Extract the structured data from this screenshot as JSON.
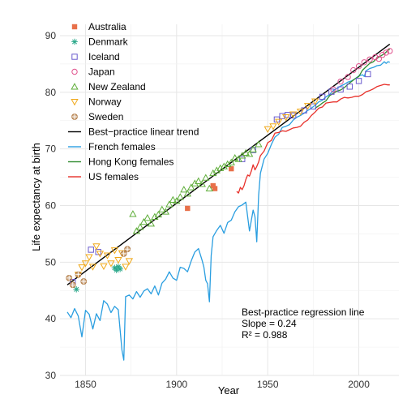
{
  "chart_data": {
    "type": "scatter",
    "xlabel": "Year",
    "ylabel": "Life expectancy at birth",
    "xlim": [
      1836,
      2022
    ],
    "ylim": [
      30,
      92
    ],
    "x_ticks": [
      1850,
      1900,
      1950,
      2000
    ],
    "y_ticks": [
      30,
      40,
      50,
      60,
      70,
      80,
      90
    ],
    "grid": true,
    "legend_position": "top-left",
    "legend": [
      {
        "name": "Australia",
        "color": "#e8704a",
        "marker": "filled-square"
      },
      {
        "name": "Denmark",
        "color": "#2aa88a",
        "marker": "asterisk"
      },
      {
        "name": "Iceland",
        "color": "#6a5acd",
        "marker": "open-square"
      },
      {
        "name": "Japan",
        "color": "#e0508c",
        "marker": "open-circle"
      },
      {
        "name": "New Zealand",
        "color": "#5fae3a",
        "marker": "open-triangle-up"
      },
      {
        "name": "Norway",
        "color": "#f0a818",
        "marker": "open-triangle-down"
      },
      {
        "name": "Sweden",
        "color": "#b07840",
        "marker": "circle-plus"
      },
      {
        "name": "Best−practice linear trend",
        "color": "#000000",
        "marker": "line"
      },
      {
        "name": "French females",
        "color": "#2a9ee0",
        "marker": "line"
      },
      {
        "name": "Hong Kong females",
        "color": "#2e8b2e",
        "marker": "line"
      },
      {
        "name": "US females",
        "color": "#e8302a",
        "marker": "line"
      }
    ],
    "annotation": {
      "title": "Best-practice regression line",
      "slope_text": "Slope = 0.24",
      "r2_text": "R² = 0.988"
    },
    "trend": {
      "x": [
        1840,
        2017
      ],
      "y": [
        46.0,
        88.5
      ]
    },
    "series": [
      {
        "name": "Australia",
        "points": [
          [
            1906,
            59.5
          ],
          [
            1920,
            63.5
          ],
          [
            1921,
            63.0
          ],
          [
            1930,
            66.5
          ]
        ]
      },
      {
        "name": "Denmark",
        "points": [
          [
            1845,
            45.2
          ],
          [
            1866,
            49.0
          ],
          [
            1867,
            48.6
          ],
          [
            1868,
            49.2
          ],
          [
            1869,
            48.8
          ]
        ]
      },
      {
        "name": "Iceland",
        "points": [
          [
            1843,
            46.5
          ],
          [
            1853,
            52.2
          ],
          [
            1857,
            51.8
          ],
          [
            1936,
            68.2
          ],
          [
            1942,
            69.8
          ],
          [
            1955,
            75.2
          ],
          [
            1958,
            75.8
          ],
          [
            1961,
            76.0
          ],
          [
            1964,
            75.9
          ],
          [
            1970,
            76.8
          ],
          [
            1975,
            77.5
          ],
          [
            1980,
            79.2
          ],
          [
            1985,
            80.1
          ],
          [
            1990,
            80.5
          ],
          [
            1995,
            81.0
          ],
          [
            2000,
            82.0
          ],
          [
            2005,
            83.2
          ]
        ]
      },
      {
        "name": "Japan",
        "points": [
          [
            1986,
            80.5
          ],
          [
            1990,
            81.9
          ],
          [
            1994,
            82.7
          ],
          [
            1997,
            83.9
          ],
          [
            2000,
            84.6
          ],
          [
            2003,
            85.3
          ],
          [
            2006,
            85.8
          ],
          [
            2009,
            86.2
          ],
          [
            2011,
            85.9
          ],
          [
            2013,
            86.6
          ],
          [
            2015,
            87.0
          ],
          [
            2017,
            87.3
          ]
        ]
      },
      {
        "name": "New Zealand",
        "points": [
          [
            1876,
            58.5
          ],
          [
            1878,
            55.5
          ],
          [
            1880,
            56.2
          ],
          [
            1882,
            57.1
          ],
          [
            1884,
            57.8
          ],
          [
            1886,
            56.8
          ],
          [
            1888,
            58.0
          ],
          [
            1890,
            58.4
          ],
          [
            1892,
            59.3
          ],
          [
            1894,
            58.9
          ],
          [
            1896,
            60.2
          ],
          [
            1898,
            61.0
          ],
          [
            1900,
            60.8
          ],
          [
            1902,
            61.5
          ],
          [
            1904,
            62.8
          ],
          [
            1906,
            62.1
          ],
          [
            1908,
            63.2
          ],
          [
            1910,
            63.9
          ],
          [
            1912,
            64.3
          ],
          [
            1914,
            63.8
          ],
          [
            1916,
            64.9
          ],
          [
            1918,
            63.0
          ],
          [
            1920,
            65.7
          ],
          [
            1922,
            66.2
          ],
          [
            1924,
            66.6
          ],
          [
            1926,
            66.9
          ],
          [
            1928,
            67.3
          ],
          [
            1930,
            67.6
          ],
          [
            1932,
            68.4
          ],
          [
            1934,
            68.2
          ],
          [
            1936,
            68.8
          ],
          [
            1938,
            69.3
          ],
          [
            1940,
            69.1
          ],
          [
            1942,
            69.9
          ],
          [
            1945,
            70.8
          ]
        ]
      },
      {
        "name": "Norway",
        "points": [
          [
            1846,
            47.8
          ],
          [
            1848,
            49.1
          ],
          [
            1850,
            49.8
          ],
          [
            1852,
            50.9
          ],
          [
            1854,
            49.2
          ],
          [
            1856,
            52.8
          ],
          [
            1858,
            51.5
          ],
          [
            1860,
            49.3
          ],
          [
            1862,
            51.2
          ],
          [
            1864,
            49.8
          ],
          [
            1866,
            52.1
          ],
          [
            1868,
            50.4
          ],
          [
            1870,
            51.6
          ],
          [
            1872,
            49.2
          ],
          [
            1874,
            50.2
          ],
          [
            1950,
            73.5
          ],
          [
            1953,
            74.0
          ],
          [
            1956,
            74.8
          ],
          [
            1960,
            75.6
          ],
          [
            1964,
            76.1
          ],
          [
            1968,
            76.6
          ],
          [
            1972,
            77.6
          ],
          [
            1976,
            78.4
          ]
        ]
      },
      {
        "name": "Sweden",
        "points": [
          [
            1841,
            47.2
          ],
          [
            1843,
            46.0
          ],
          [
            1846,
            47.8
          ],
          [
            1849,
            46.6
          ],
          [
            1871,
            51.5
          ],
          [
            1873,
            52.3
          ]
        ]
      },
      {
        "name": "French females",
        "points": [
          [
            1840,
            41.2
          ],
          [
            1842,
            40.2
          ],
          [
            1844,
            41.8
          ],
          [
            1846,
            40.5
          ],
          [
            1848,
            36.8
          ],
          [
            1850,
            41.5
          ],
          [
            1852,
            40.8
          ],
          [
            1854,
            38.2
          ],
          [
            1856,
            40.9
          ],
          [
            1858,
            39.7
          ],
          [
            1860,
            43.2
          ],
          [
            1862,
            42.6
          ],
          [
            1864,
            41.1
          ],
          [
            1866,
            42.2
          ],
          [
            1868,
            41.6
          ],
          [
            1870,
            34.5
          ],
          [
            1871,
            32.7
          ],
          [
            1872,
            43.9
          ],
          [
            1874,
            44.2
          ],
          [
            1876,
            43.5
          ],
          [
            1878,
            44.8
          ],
          [
            1880,
            43.8
          ],
          [
            1882,
            44.9
          ],
          [
            1884,
            45.3
          ],
          [
            1886,
            44.4
          ],
          [
            1888,
            45.8
          ],
          [
            1890,
            44.2
          ],
          [
            1892,
            46.3
          ],
          [
            1894,
            47.0
          ],
          [
            1896,
            48.3
          ],
          [
            1898,
            47.2
          ],
          [
            1900,
            46.8
          ],
          [
            1902,
            49.1
          ],
          [
            1904,
            48.9
          ],
          [
            1906,
            48.3
          ],
          [
            1908,
            50.2
          ],
          [
            1910,
            51.8
          ],
          [
            1912,
            52.4
          ],
          [
            1914,
            50.3
          ],
          [
            1915,
            49.1
          ],
          [
            1916,
            46.8
          ],
          [
            1917,
            46.2
          ],
          [
            1918,
            43.0
          ],
          [
            1919,
            51.2
          ],
          [
            1920,
            54.5
          ],
          [
            1922,
            55.6
          ],
          [
            1924,
            56.5
          ],
          [
            1926,
            55.1
          ],
          [
            1928,
            57.0
          ],
          [
            1930,
            57.4
          ],
          [
            1932,
            58.9
          ],
          [
            1934,
            59.8
          ],
          [
            1936,
            60.1
          ],
          [
            1938,
            60.6
          ],
          [
            1940,
            55.5
          ],
          [
            1942,
            59.2
          ],
          [
            1943,
            58.0
          ],
          [
            1944,
            53.6
          ],
          [
            1945,
            61.8
          ],
          [
            1946,
            65.7
          ],
          [
            1948,
            68.2
          ],
          [
            1950,
            69.2
          ],
          [
            1952,
            70.8
          ],
          [
            1954,
            72.1
          ],
          [
            1956,
            72.6
          ],
          [
            1958,
            73.8
          ],
          [
            1960,
            74.0
          ],
          [
            1962,
            74.3
          ],
          [
            1964,
            75.1
          ],
          [
            1966,
            75.6
          ],
          [
            1968,
            75.9
          ],
          [
            1970,
            76.3
          ],
          [
            1972,
            76.8
          ],
          [
            1974,
            77.2
          ],
          [
            1976,
            77.7
          ],
          [
            1978,
            78.3
          ],
          [
            1980,
            78.6
          ],
          [
            1982,
            79.2
          ],
          [
            1984,
            79.6
          ],
          [
            1986,
            80.3
          ],
          [
            1988,
            80.7
          ],
          [
            1990,
            81.1
          ],
          [
            1992,
            81.4
          ],
          [
            1994,
            81.8
          ],
          [
            1996,
            82.0
          ],
          [
            1998,
            82.4
          ],
          [
            2000,
            82.9
          ],
          [
            2002,
            83.1
          ],
          [
            2003,
            82.8
          ],
          [
            2004,
            83.8
          ],
          [
            2006,
            84.2
          ],
          [
            2008,
            84.4
          ],
          [
            2010,
            84.7
          ],
          [
            2012,
            84.8
          ],
          [
            2014,
            85.4
          ],
          [
            2015,
            85.1
          ],
          [
            2016,
            85.4
          ],
          [
            2017,
            85.3
          ]
        ]
      },
      {
        "name": "Hong Kong females",
        "points": [
          [
            1976,
            77.2
          ],
          [
            1978,
            77.6
          ],
          [
            1980,
            78.1
          ],
          [
            1982,
            78.5
          ],
          [
            1984,
            79.4
          ],
          [
            1986,
            79.8
          ],
          [
            1988,
            80.2
          ],
          [
            1990,
            80.4
          ],
          [
            1992,
            80.8
          ],
          [
            1994,
            81.4
          ],
          [
            1996,
            81.9
          ],
          [
            1998,
            82.4
          ],
          [
            2000,
            82.8
          ],
          [
            2002,
            83.9
          ],
          [
            2004,
            84.5
          ],
          [
            2006,
            85.1
          ],
          [
            2008,
            85.4
          ],
          [
            2010,
            86.0
          ],
          [
            2012,
            86.4
          ],
          [
            2014,
            86.8
          ],
          [
            2016,
            87.4
          ],
          [
            2017,
            87.6
          ]
        ]
      },
      {
        "name": "US females",
        "points": [
          [
            1933,
            62.5
          ],
          [
            1934,
            62.2
          ],
          [
            1935,
            63.2
          ],
          [
            1936,
            62.8
          ],
          [
            1937,
            63.5
          ],
          [
            1938,
            64.6
          ],
          [
            1939,
            65.4
          ],
          [
            1940,
            65.2
          ],
          [
            1941,
            66.1
          ],
          [
            1942,
            67.2
          ],
          [
            1943,
            66.3
          ],
          [
            1944,
            66.9
          ],
          [
            1945,
            67.7
          ],
          [
            1946,
            68.8
          ],
          [
            1948,
            69.6
          ],
          [
            1950,
            71.1
          ],
          [
            1952,
            71.5
          ],
          [
            1954,
            72.8
          ],
          [
            1956,
            72.9
          ],
          [
            1958,
            73.2
          ],
          [
            1960,
            73.1
          ],
          [
            1962,
            73.4
          ],
          [
            1964,
            73.7
          ],
          [
            1966,
            73.8
          ],
          [
            1968,
            74.0
          ],
          [
            1970,
            74.7
          ],
          [
            1972,
            75.1
          ],
          [
            1974,
            75.9
          ],
          [
            1976,
            76.5
          ],
          [
            1978,
            77.2
          ],
          [
            1980,
            77.4
          ],
          [
            1982,
            78.1
          ],
          [
            1984,
            78.2
          ],
          [
            1986,
            78.3
          ],
          [
            1988,
            78.3
          ],
          [
            1990,
            78.8
          ],
          [
            1992,
            79.1
          ],
          [
            1994,
            79.0
          ],
          [
            1996,
            79.1
          ],
          [
            1998,
            79.3
          ],
          [
            2000,
            79.3
          ],
          [
            2002,
            79.6
          ],
          [
            2004,
            80.1
          ],
          [
            2006,
            80.3
          ],
          [
            2008,
            80.6
          ],
          [
            2010,
            81.0
          ],
          [
            2012,
            81.2
          ],
          [
            2014,
            81.4
          ],
          [
            2016,
            81.3
          ],
          [
            2017,
            81.3
          ]
        ]
      }
    ]
  }
}
